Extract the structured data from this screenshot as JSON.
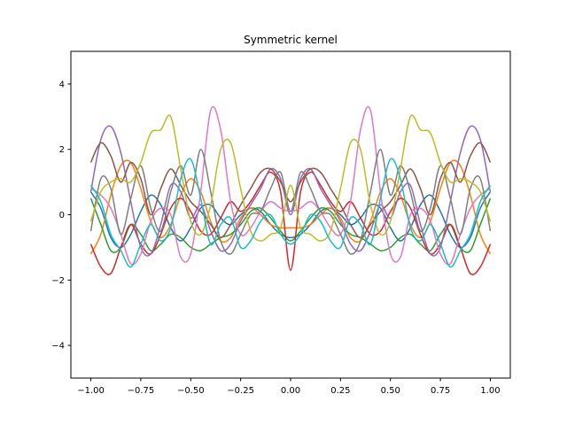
{
  "chart_data": {
    "type": "line",
    "title": "Symmetric kernel",
    "xlabel": "",
    "ylabel": "",
    "xlim": [
      -1.1,
      1.1
    ],
    "ylim": [
      -5,
      5
    ],
    "xticks": [
      -1.0,
      -0.75,
      -0.5,
      -0.25,
      0.0,
      0.25,
      0.5,
      0.75,
      1.0
    ],
    "xtick_labels": [
      "−1.00",
      "−0.75",
      "−0.50",
      "−0.25",
      "0.00",
      "0.25",
      "0.50",
      "0.75",
      "1.00"
    ],
    "yticks": [
      -4,
      -2,
      0,
      2,
      4
    ],
    "ytick_labels": [
      "−4",
      "−2",
      "0",
      "2",
      "4"
    ],
    "grid": false,
    "legend": "none",
    "x": [
      -1.0,
      -0.95,
      -0.9,
      -0.85,
      -0.8,
      -0.75,
      -0.7,
      -0.65,
      -0.6,
      -0.55,
      -0.5,
      -0.45,
      -0.4,
      -0.35,
      -0.3,
      -0.25,
      -0.2,
      -0.15,
      -0.1,
      -0.05,
      0.0,
      0.05,
      0.1,
      0.15,
      0.2,
      0.25,
      0.3,
      0.35,
      0.4,
      0.45,
      0.5,
      0.55,
      0.6,
      0.65,
      0.7,
      0.75,
      0.8,
      0.85,
      0.9,
      0.95,
      1.0
    ],
    "series": [
      {
        "color": "#1f77b4",
        "values": [
          0.7,
          0.2,
          -0.7,
          -1.0,
          -0.6,
          0.1,
          0.6,
          0.3,
          -0.4,
          -0.8,
          -0.4,
          0.2,
          0.3,
          -0.1,
          -0.3,
          0.0,
          0.2,
          0.1,
          -0.3,
          -0.6,
          -0.7,
          -0.6,
          -0.3,
          0.1,
          0.2,
          0.0,
          -0.3,
          -0.1,
          0.3,
          0.2,
          -0.4,
          -0.8,
          -0.4,
          0.3,
          0.6,
          0.1,
          -0.6,
          -1.0,
          -0.7,
          0.2,
          0.7
        ]
      },
      {
        "color": "#ff7f0e",
        "values": [
          -1.2,
          -0.6,
          0.6,
          1.5,
          1.6,
          0.8,
          -0.2,
          -0.7,
          -0.3,
          0.6,
          1.1,
          0.7,
          -0.2,
          -0.8,
          -0.7,
          -0.1,
          0.2,
          0.0,
          -0.3,
          -0.4,
          -0.4,
          -0.4,
          -0.3,
          0.0,
          0.2,
          -0.1,
          -0.7,
          -0.8,
          -0.2,
          0.7,
          1.1,
          0.6,
          -0.3,
          -0.7,
          -0.2,
          0.8,
          1.6,
          1.5,
          0.6,
          -0.6,
          -1.2
        ]
      },
      {
        "color": "#2ca02c",
        "values": [
          0.5,
          -0.3,
          -1.1,
          -1.0,
          -0.3,
          -0.6,
          -1.1,
          -0.9,
          -0.6,
          -0.7,
          -1.0,
          -1.1,
          -0.9,
          -0.7,
          -0.6,
          -0.3,
          0.1,
          0.2,
          -0.1,
          -0.5,
          -0.8,
          -0.5,
          -0.1,
          0.2,
          0.1,
          -0.3,
          -0.6,
          -0.7,
          -0.9,
          -1.1,
          -1.0,
          -0.7,
          -0.6,
          -0.9,
          -1.1,
          -0.6,
          -0.3,
          -1.0,
          -1.1,
          -0.3,
          0.5
        ]
      },
      {
        "color": "#d62728",
        "values": [
          -0.9,
          -1.6,
          -1.8,
          -1.0,
          -0.3,
          -0.9,
          -1.2,
          -0.6,
          0.2,
          0.5,
          0.1,
          -0.5,
          -0.6,
          -0.1,
          0.4,
          0.1,
          0.4,
          0.9,
          1.3,
          0.7,
          -1.7,
          0.7,
          1.3,
          0.9,
          0.4,
          0.1,
          0.4,
          -0.1,
          -0.6,
          -0.5,
          0.1,
          0.5,
          0.2,
          -0.6,
          -1.2,
          -0.9,
          -0.3,
          -1.0,
          -1.8,
          -1.6,
          -0.9
        ]
      },
      {
        "color": "#9467bd",
        "values": [
          0.7,
          2.3,
          2.7,
          1.9,
          0.4,
          -1.0,
          -1.2,
          -0.3,
          0.9,
          0.7,
          -0.1,
          0.3,
          -0.5,
          -1.1,
          -0.9,
          -0.2,
          0.3,
          0.8,
          1.4,
          1.1,
          0.0,
          1.1,
          1.4,
          0.8,
          0.3,
          -0.2,
          -0.9,
          -1.1,
          -0.5,
          0.3,
          -0.1,
          0.7,
          0.9,
          -0.3,
          -1.2,
          -1.0,
          0.4,
          1.9,
          2.7,
          2.3,
          0.7
        ]
      },
      {
        "color": "#8c564b",
        "values": [
          1.6,
          2.2,
          1.8,
          1.0,
          1.6,
          1.1,
          0.0,
          0.8,
          1.4,
          0.9,
          0.4,
          0.1,
          -0.3,
          -0.7,
          -0.3,
          0.3,
          0.8,
          1.3,
          1.4,
          1.0,
          0.4,
          1.0,
          1.4,
          1.3,
          0.8,
          0.3,
          -0.3,
          -0.7,
          -0.3,
          0.1,
          0.4,
          0.9,
          1.4,
          0.8,
          0.0,
          1.1,
          1.6,
          1.0,
          1.8,
          2.2,
          1.6
        ]
      },
      {
        "color": "#e377c2",
        "values": [
          0.8,
          0.6,
          0.2,
          -0.6,
          -1.5,
          -1.2,
          -0.2,
          0.2,
          0.0,
          -1.3,
          -1.2,
          0.7,
          3.2,
          2.6,
          0.4,
          -0.6,
          -0.4,
          0.1,
          0.4,
          0.2,
          0.1,
          0.2,
          0.4,
          0.1,
          -0.4,
          -0.6,
          0.4,
          2.6,
          3.2,
          0.7,
          -1.2,
          -1.3,
          0.0,
          0.2,
          -0.2,
          -1.2,
          -1.5,
          -0.6,
          0.2,
          0.6,
          0.8
        ]
      },
      {
        "color": "#7f7f7f",
        "values": [
          -0.5,
          1.1,
          0.8,
          -0.6,
          0.5,
          1.5,
          0.2,
          -0.5,
          0.7,
          1.5,
          0.6,
          2.0,
          0.7,
          -0.8,
          -1.2,
          -0.6,
          0.0,
          0.1,
          0.8,
          1.3,
          0.1,
          1.3,
          0.8,
          0.1,
          0.0,
          -0.6,
          -1.2,
          -0.8,
          0.7,
          2.0,
          0.6,
          1.5,
          0.7,
          -0.5,
          0.2,
          1.5,
          0.5,
          -0.6,
          0.8,
          1.1,
          -0.5
        ]
      },
      {
        "color": "#bcbd22",
        "values": [
          -0.2,
          0.7,
          1.0,
          1.1,
          1.0,
          1.6,
          2.5,
          2.6,
          3.0,
          1.4,
          -0.2,
          -0.6,
          0.3,
          2.0,
          2.2,
          0.8,
          -0.5,
          -0.8,
          -0.6,
          -0.4,
          0.9,
          -0.4,
          -0.6,
          -0.8,
          -0.5,
          0.8,
          2.2,
          2.0,
          0.3,
          -0.6,
          -0.2,
          1.4,
          3.0,
          2.6,
          2.5,
          1.6,
          1.0,
          1.1,
          1.0,
          0.7,
          -0.2
        ]
      },
      {
        "color": "#17becf",
        "values": [
          0.9,
          0.4,
          -0.6,
          -1.1,
          -1.6,
          -0.9,
          -0.3,
          -0.8,
          -0.4,
          1.1,
          1.7,
          0.5,
          -0.9,
          -0.3,
          -0.1,
          -1.0,
          -0.8,
          -0.2,
          0.0,
          -0.6,
          -0.9,
          -0.6,
          0.0,
          -0.2,
          -0.8,
          -1.0,
          -0.1,
          -0.3,
          -0.9,
          0.5,
          1.7,
          1.1,
          -0.4,
          -0.8,
          -0.3,
          -0.9,
          -1.6,
          -1.1,
          -0.6,
          0.4,
          0.9
        ]
      }
    ]
  }
}
